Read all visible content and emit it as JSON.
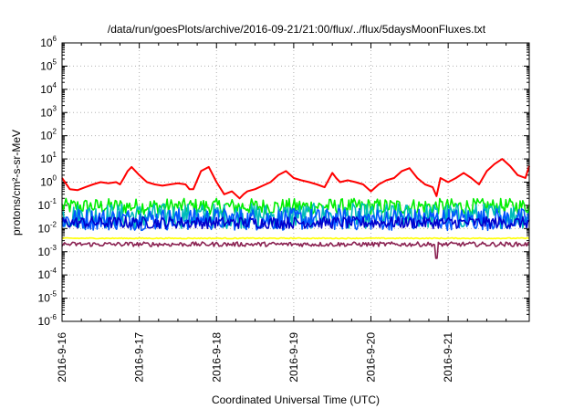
{
  "chart_data": {
    "type": "line",
    "title": "/data/run/goesPlots/archive/2016-09-21/21:00/flux/../flux/5daysMoonFluxes.txt",
    "xlabel": "Coordinated Universal Time (UTC)",
    "ylabel": "protons/cm²-s-sr-MeV",
    "y_scale": "log",
    "ylim_exponent": [
      -6,
      6
    ],
    "y_tick_exponents": [
      -6,
      -5,
      -4,
      -3,
      -2,
      -1,
      0,
      1,
      2,
      3,
      4,
      5,
      6
    ],
    "y_tick_base": "10",
    "x_ticks": [
      "2016-9-16",
      "2016-9-17",
      "2016-9-18",
      "2016-9-19",
      "2016-9-20",
      "2016-9-21"
    ],
    "x_range_days": [
      0,
      6.05
    ],
    "grid": true,
    "legend": "none",
    "series": [
      {
        "color": "#ff0000",
        "x_days": [
          0,
          0.1,
          0.2,
          0.3,
          0.4,
          0.5,
          0.6,
          0.7,
          0.75,
          0.8,
          0.85,
          0.9,
          1.0,
          1.1,
          1.2,
          1.3,
          1.4,
          1.5,
          1.6,
          1.65,
          1.7,
          1.8,
          1.9,
          2.0,
          2.1,
          2.2,
          2.3,
          2.35,
          2.4,
          2.5,
          2.6,
          2.7,
          2.8,
          2.9,
          3.0,
          3.1,
          3.2,
          3.3,
          3.4,
          3.5,
          3.55,
          3.6,
          3.7,
          3.8,
          3.9,
          4.0,
          4.1,
          4.2,
          4.3,
          4.4,
          4.5,
          4.6,
          4.7,
          4.8,
          4.85,
          4.9,
          5.0,
          5.1,
          5.2,
          5.3,
          5.4,
          5.5,
          5.6,
          5.7,
          5.8,
          5.9,
          6.0,
          6.05
        ],
        "y": [
          1.5,
          0.5,
          0.45,
          0.6,
          0.8,
          1.0,
          0.9,
          1.0,
          0.8,
          1.5,
          3.0,
          4.5,
          2.0,
          1.0,
          0.8,
          0.7,
          0.8,
          0.9,
          0.8,
          0.5,
          0.5,
          3.0,
          4.5,
          1.0,
          0.3,
          0.4,
          0.2,
          0.3,
          0.4,
          0.5,
          0.7,
          1.0,
          2.0,
          3.0,
          1.5,
          1.2,
          1.0,
          0.8,
          0.6,
          2.5,
          1.5,
          1.0,
          1.2,
          1.0,
          0.8,
          0.4,
          0.8,
          1.2,
          1.5,
          3.0,
          4.0,
          1.5,
          0.8,
          0.6,
          0.25,
          1.5,
          1.0,
          1.5,
          2.5,
          1.5,
          0.8,
          3.0,
          6.0,
          10.0,
          5.0,
          2.0,
          1.5,
          5.0
        ]
      },
      {
        "color": "#00ee00",
        "level": 0.09,
        "spread": 2.2
      },
      {
        "color": "#00bbbb",
        "level": 0.035,
        "spread": 3.5
      },
      {
        "color": "#0055ff",
        "level": 0.025,
        "spread": 3.0
      },
      {
        "color": "#0000cc",
        "level": 0.018,
        "spread": 1.8
      },
      {
        "color": "#ffff00",
        "level": 0.0038,
        "spread": 1.05
      },
      {
        "color": "#8b2252",
        "level": 0.0021,
        "spread": 1.25
      }
    ]
  }
}
